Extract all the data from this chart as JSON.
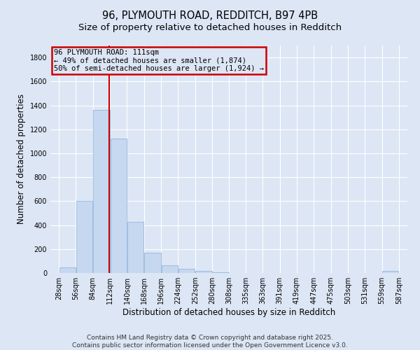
{
  "title": "96, PLYMOUTH ROAD, REDDITCH, B97 4PB",
  "subtitle": "Size of property relative to detached houses in Redditch",
  "xlabel": "Distribution of detached houses by size in Redditch",
  "ylabel": "Number of detached properties",
  "bg_color": "#dde6f5",
  "bar_color": "#c5d8f0",
  "bar_edge_color": "#8ab0d8",
  "vline_color": "#cc0000",
  "vline_value": 111,
  "annotation_line1": "96 PLYMOUTH ROAD: 111sqm",
  "annotation_line2": "← 49% of detached houses are smaller (1,874)",
  "annotation_line3": "50% of semi-detached houses are larger (1,924) →",
  "annotation_box_color": "#cc0000",
  "annotation_text_color": "#000000",
  "footer_text": "Contains HM Land Registry data © Crown copyright and database right 2025.\nContains public sector information licensed under the Open Government Licence v3.0.",
  "bins": [
    28,
    56,
    84,
    112,
    140,
    168,
    196,
    224,
    252,
    280,
    308,
    335,
    363,
    391,
    419,
    447,
    475,
    503,
    531,
    559,
    587
  ],
  "bin_labels": [
    "28sqm",
    "56sqm",
    "84sqm",
    "112sqm",
    "140sqm",
    "168sqm",
    "196sqm",
    "224sqm",
    "252sqm",
    "280sqm",
    "308sqm",
    "335sqm",
    "363sqm",
    "391sqm",
    "419sqm",
    "447sqm",
    "475sqm",
    "503sqm",
    "531sqm",
    "559sqm",
    "587sqm"
  ],
  "bar_heights": [
    45,
    605,
    1365,
    1125,
    425,
    170,
    65,
    35,
    15,
    5,
    0,
    0,
    0,
    0,
    0,
    0,
    0,
    0,
    0,
    15
  ],
  "ylim": [
    0,
    1900
  ],
  "yticks": [
    0,
    200,
    400,
    600,
    800,
    1000,
    1200,
    1400,
    1600,
    1800
  ],
  "grid_color": "#ffffff",
  "title_fontsize": 10.5,
  "subtitle_fontsize": 9.5,
  "label_fontsize": 8.5,
  "tick_fontsize": 7,
  "footer_fontsize": 6.5,
  "annot_fontsize": 7.5
}
